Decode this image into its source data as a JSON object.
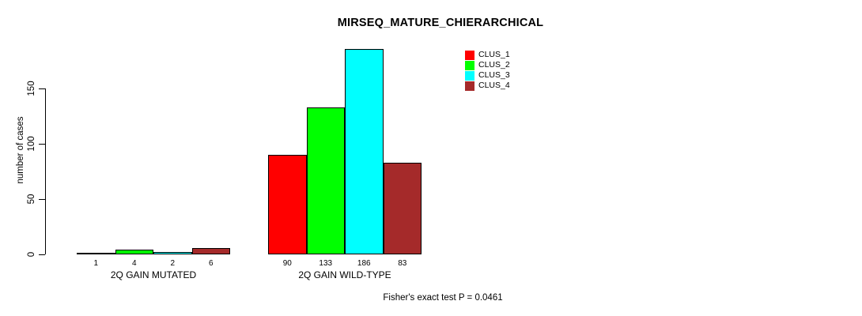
{
  "chart_data": {
    "type": "bar",
    "title": "MIRSEQ_MATURE_CHIERARCHICAL",
    "xlabel": "",
    "ylabel": "number of cases",
    "footnote": "Fisher's exact test P = 0.0461",
    "ylim": [
      0,
      190
    ],
    "yticks": [
      0,
      50,
      100,
      150
    ],
    "grid": false,
    "legend_position": "top-right-inside",
    "bar_value_labels": true,
    "categories": [
      "2Q GAIN MUTATED",
      "2Q GAIN WILD-TYPE"
    ],
    "series": [
      {
        "name": "CLUS_1",
        "color": "#FF0000",
        "values": [
          1,
          90
        ]
      },
      {
        "name": "CLUS_2",
        "color": "#00FF00",
        "values": [
          4,
          133
        ]
      },
      {
        "name": "CLUS_3",
        "color": "#00FFFF",
        "values": [
          2,
          186
        ]
      },
      {
        "name": "CLUS_4",
        "color": "#A52A2A",
        "values": [
          6,
          83
        ]
      }
    ],
    "colors": {
      "background": "#FFFFFF",
      "axis": "#000000",
      "text": "#000000",
      "bar_border": "#000000"
    }
  }
}
